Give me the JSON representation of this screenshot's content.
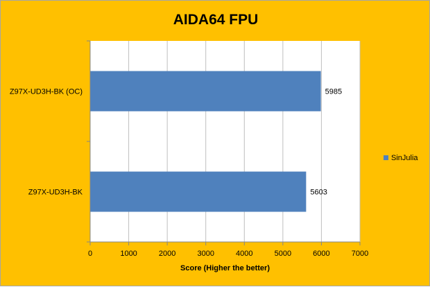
{
  "chart_data": {
    "type": "bar",
    "orientation": "horizontal",
    "title": "AIDA64 FPU",
    "xlabel": "Score (Higher the better)",
    "ylabel": "",
    "categories": [
      "Z97X-UD3H-BK (OC)",
      "Z97X-UD3H-BK"
    ],
    "series": [
      {
        "name": "SinJulia",
        "values": [
          5985,
          5603
        ],
        "color": "#4f81bd"
      }
    ],
    "data_labels": [
      "5985",
      "5603"
    ],
    "xlim": [
      0,
      7000
    ],
    "xticks": [
      0,
      1000,
      2000,
      3000,
      4000,
      5000,
      6000,
      7000
    ],
    "grid": true,
    "legend_position": "right",
    "colors": {
      "background": "#ffc000",
      "plot_area": "#ffffff",
      "gridline": "#bfbfbf",
      "bar": "#4f81bd"
    }
  }
}
